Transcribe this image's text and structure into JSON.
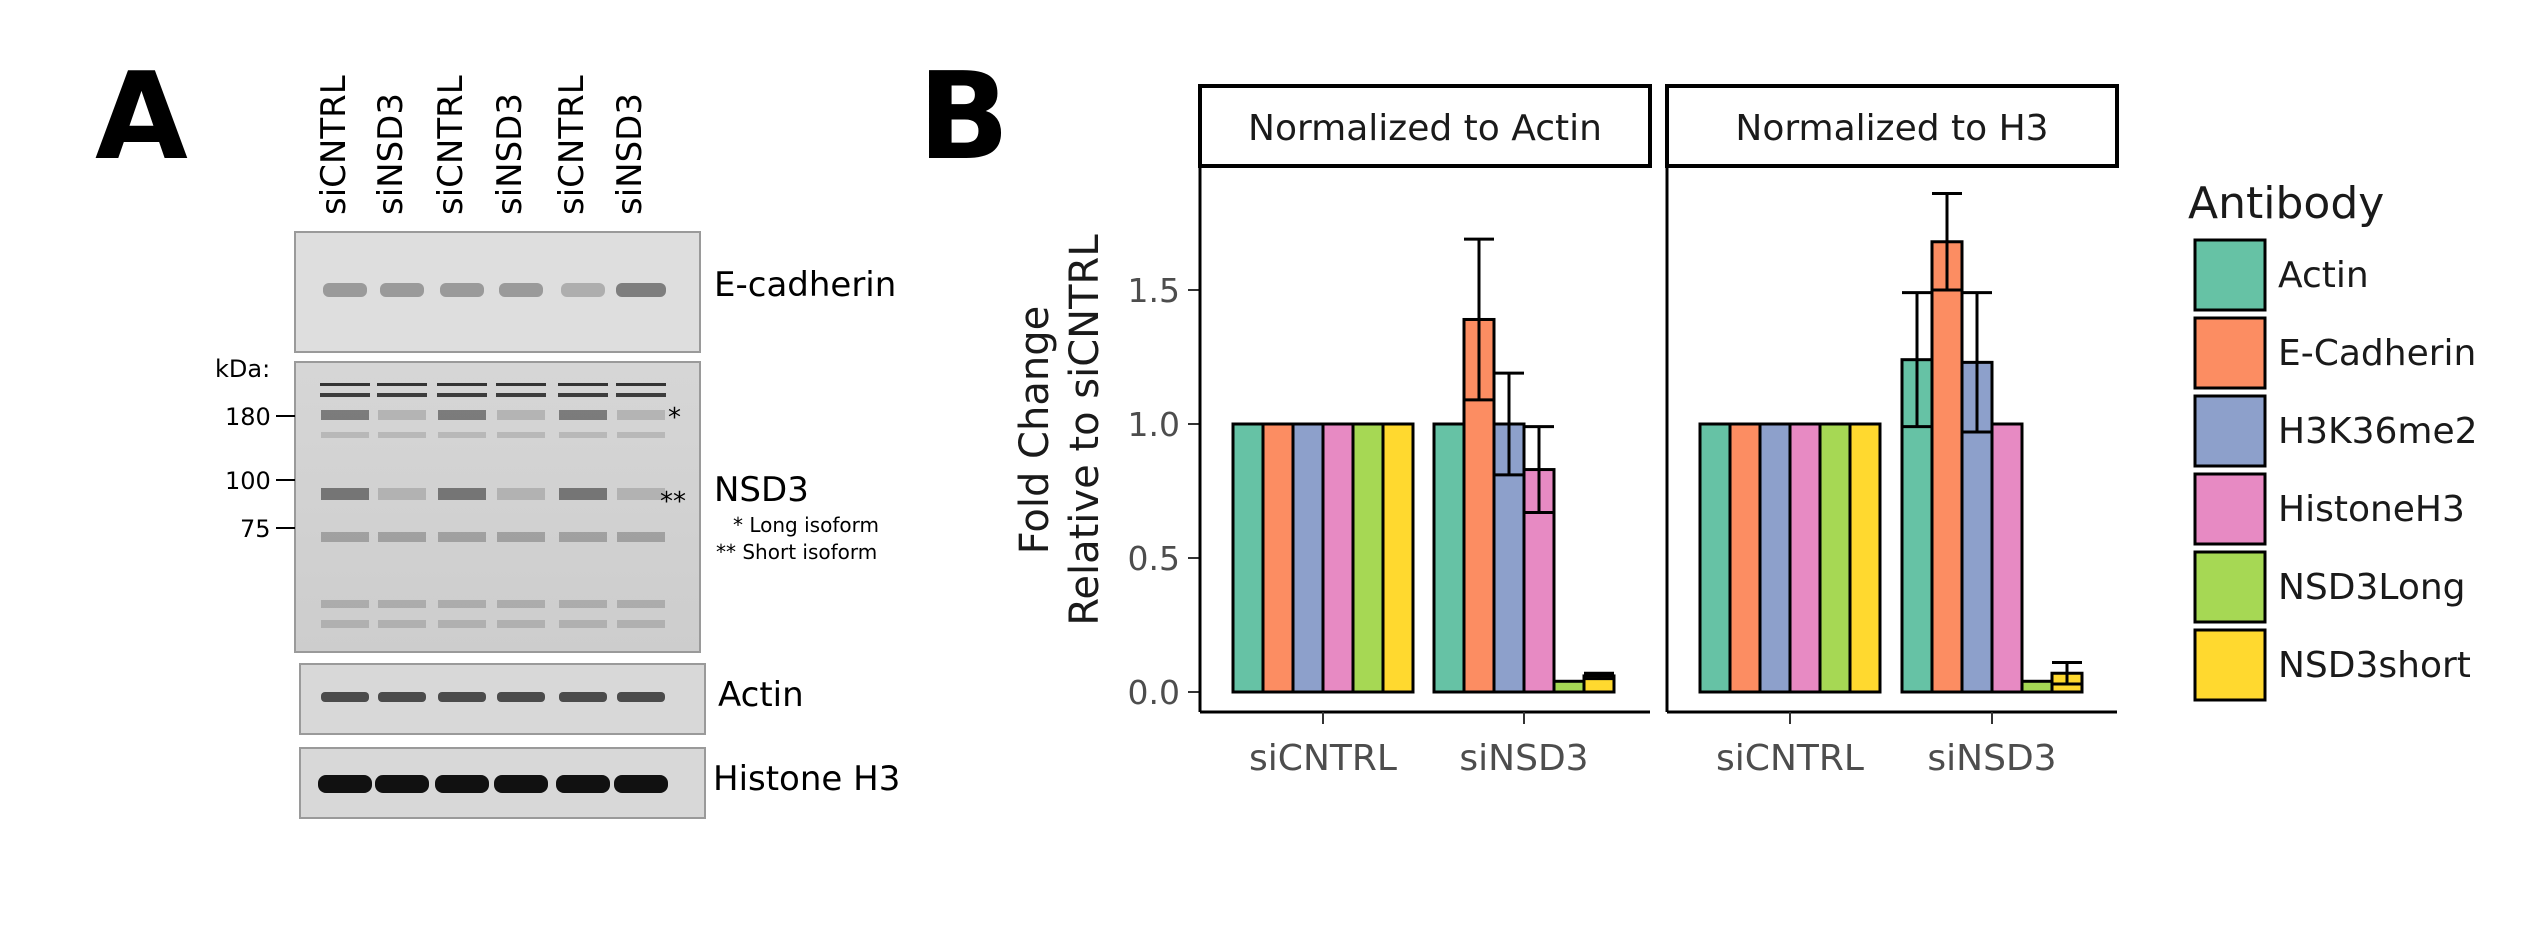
{
  "panel_a": {
    "label": "A",
    "lanes": [
      "siCNTRL",
      "siNSD3",
      "siCNTRL",
      "siNSD3",
      "siCNTRL",
      "siNSD3"
    ],
    "kda_label": "kDa:",
    "markers": [
      "180",
      "100",
      "75"
    ],
    "blots": {
      "ecadherin": "E-cadherin",
      "nsd3": "NSD3",
      "actin": "Actin",
      "h3": "Histone H3"
    },
    "star_long": "*",
    "star_short": "**",
    "note_long": "* Long isoform",
    "note_short": "** Short isoform"
  },
  "panel_b": {
    "label": "B"
  },
  "chart_data": {
    "type": "bar",
    "ylabel": [
      "Fold Change",
      "Relative to siCNTRL"
    ],
    "y_ticks": [
      "0.0",
      "0.5",
      "1.0",
      "1.5"
    ],
    "ylim": [
      0,
      1.95
    ],
    "grid": false,
    "legend_title": "Antibody",
    "legend_position": "right",
    "facets": [
      {
        "title": "Normalized to Actin",
        "categories": [
          "siCNTRL",
          "siNSD3"
        ],
        "series": [
          {
            "name": "Actin",
            "color": "#66c2a5",
            "values": [
              1.0,
              1.0
            ],
            "err": [
              null,
              null
            ]
          },
          {
            "name": "E-Cadherin",
            "color": "#fc8d62",
            "values": [
              1.0,
              1.39
            ],
            "err": [
              null,
              0.3
            ]
          },
          {
            "name": "H3K36me2",
            "color": "#8da0cb",
            "values": [
              1.0,
              1.0
            ],
            "err": [
              null,
              0.19
            ]
          },
          {
            "name": "HistoneH3",
            "color": "#e78ac3",
            "values": [
              1.0,
              0.83
            ],
            "err": [
              null,
              0.16
            ]
          },
          {
            "name": "NSD3Long",
            "color": "#a6d854",
            "values": [
              1.0,
              0.04
            ],
            "err": [
              null,
              null
            ]
          },
          {
            "name": "NSD3short",
            "color": "#ffd92f",
            "values": [
              1.0,
              0.06
            ],
            "err": [
              null,
              0.01
            ]
          }
        ]
      },
      {
        "title": "Normalized to H3",
        "categories": [
          "siCNTRL",
          "siNSD3"
        ],
        "series": [
          {
            "name": "Actin",
            "color": "#66c2a5",
            "values": [
              1.0,
              1.24
            ],
            "err": [
              null,
              0.25
            ]
          },
          {
            "name": "E-Cadherin",
            "color": "#fc8d62",
            "values": [
              1.0,
              1.68
            ],
            "err": [
              null,
              0.18
            ]
          },
          {
            "name": "H3K36me2",
            "color": "#8da0cb",
            "values": [
              1.0,
              1.23
            ],
            "err": [
              null,
              0.26
            ]
          },
          {
            "name": "HistoneH3",
            "color": "#e78ac3",
            "values": [
              1.0,
              1.0
            ],
            "err": [
              null,
              null
            ]
          },
          {
            "name": "NSD3Long",
            "color": "#a6d854",
            "values": [
              1.0,
              0.04
            ],
            "err": [
              null,
              null
            ]
          },
          {
            "name": "NSD3short",
            "color": "#ffd92f",
            "values": [
              1.0,
              0.07
            ],
            "err": [
              null,
              0.04
            ]
          }
        ]
      }
    ]
  }
}
